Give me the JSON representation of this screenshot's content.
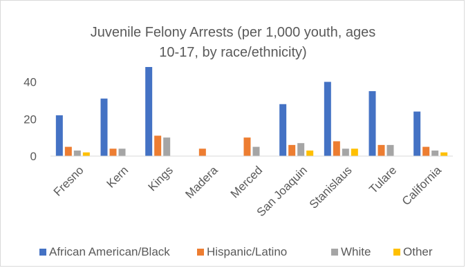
{
  "chart_data": {
    "type": "bar",
    "title_lines": [
      "Juvenile Felony Arrests (per 1,000 youth, ages",
      "10-17, by race/ethnicity)"
    ],
    "categories": [
      "Fresno",
      "Kern",
      "Kings",
      "Madera",
      "Merced",
      "San Joaquin",
      "Stanislaus",
      "Tulare",
      "California"
    ],
    "series": [
      {
        "name": "African American/Black",
        "color": "#4472c4",
        "values": [
          22,
          31,
          48,
          null,
          null,
          28,
          40,
          35,
          24
        ]
      },
      {
        "name": "Hispanic/Latino",
        "color": "#ed7d31",
        "values": [
          5,
          4,
          11,
          4,
          10,
          6,
          8,
          6,
          5
        ]
      },
      {
        "name": "White",
        "color": "#a5a5a5",
        "values": [
          3,
          4,
          10,
          null,
          5,
          7,
          4,
          6,
          3
        ]
      },
      {
        "name": "Other",
        "color": "#ffc000",
        "values": [
          2,
          null,
          null,
          null,
          null,
          3,
          4,
          null,
          2
        ]
      }
    ],
    "y_ticks": [
      "0",
      "20",
      "40"
    ],
    "ylim": [
      0,
      48
    ],
    "grid": false,
    "legend_position": "bottom"
  }
}
